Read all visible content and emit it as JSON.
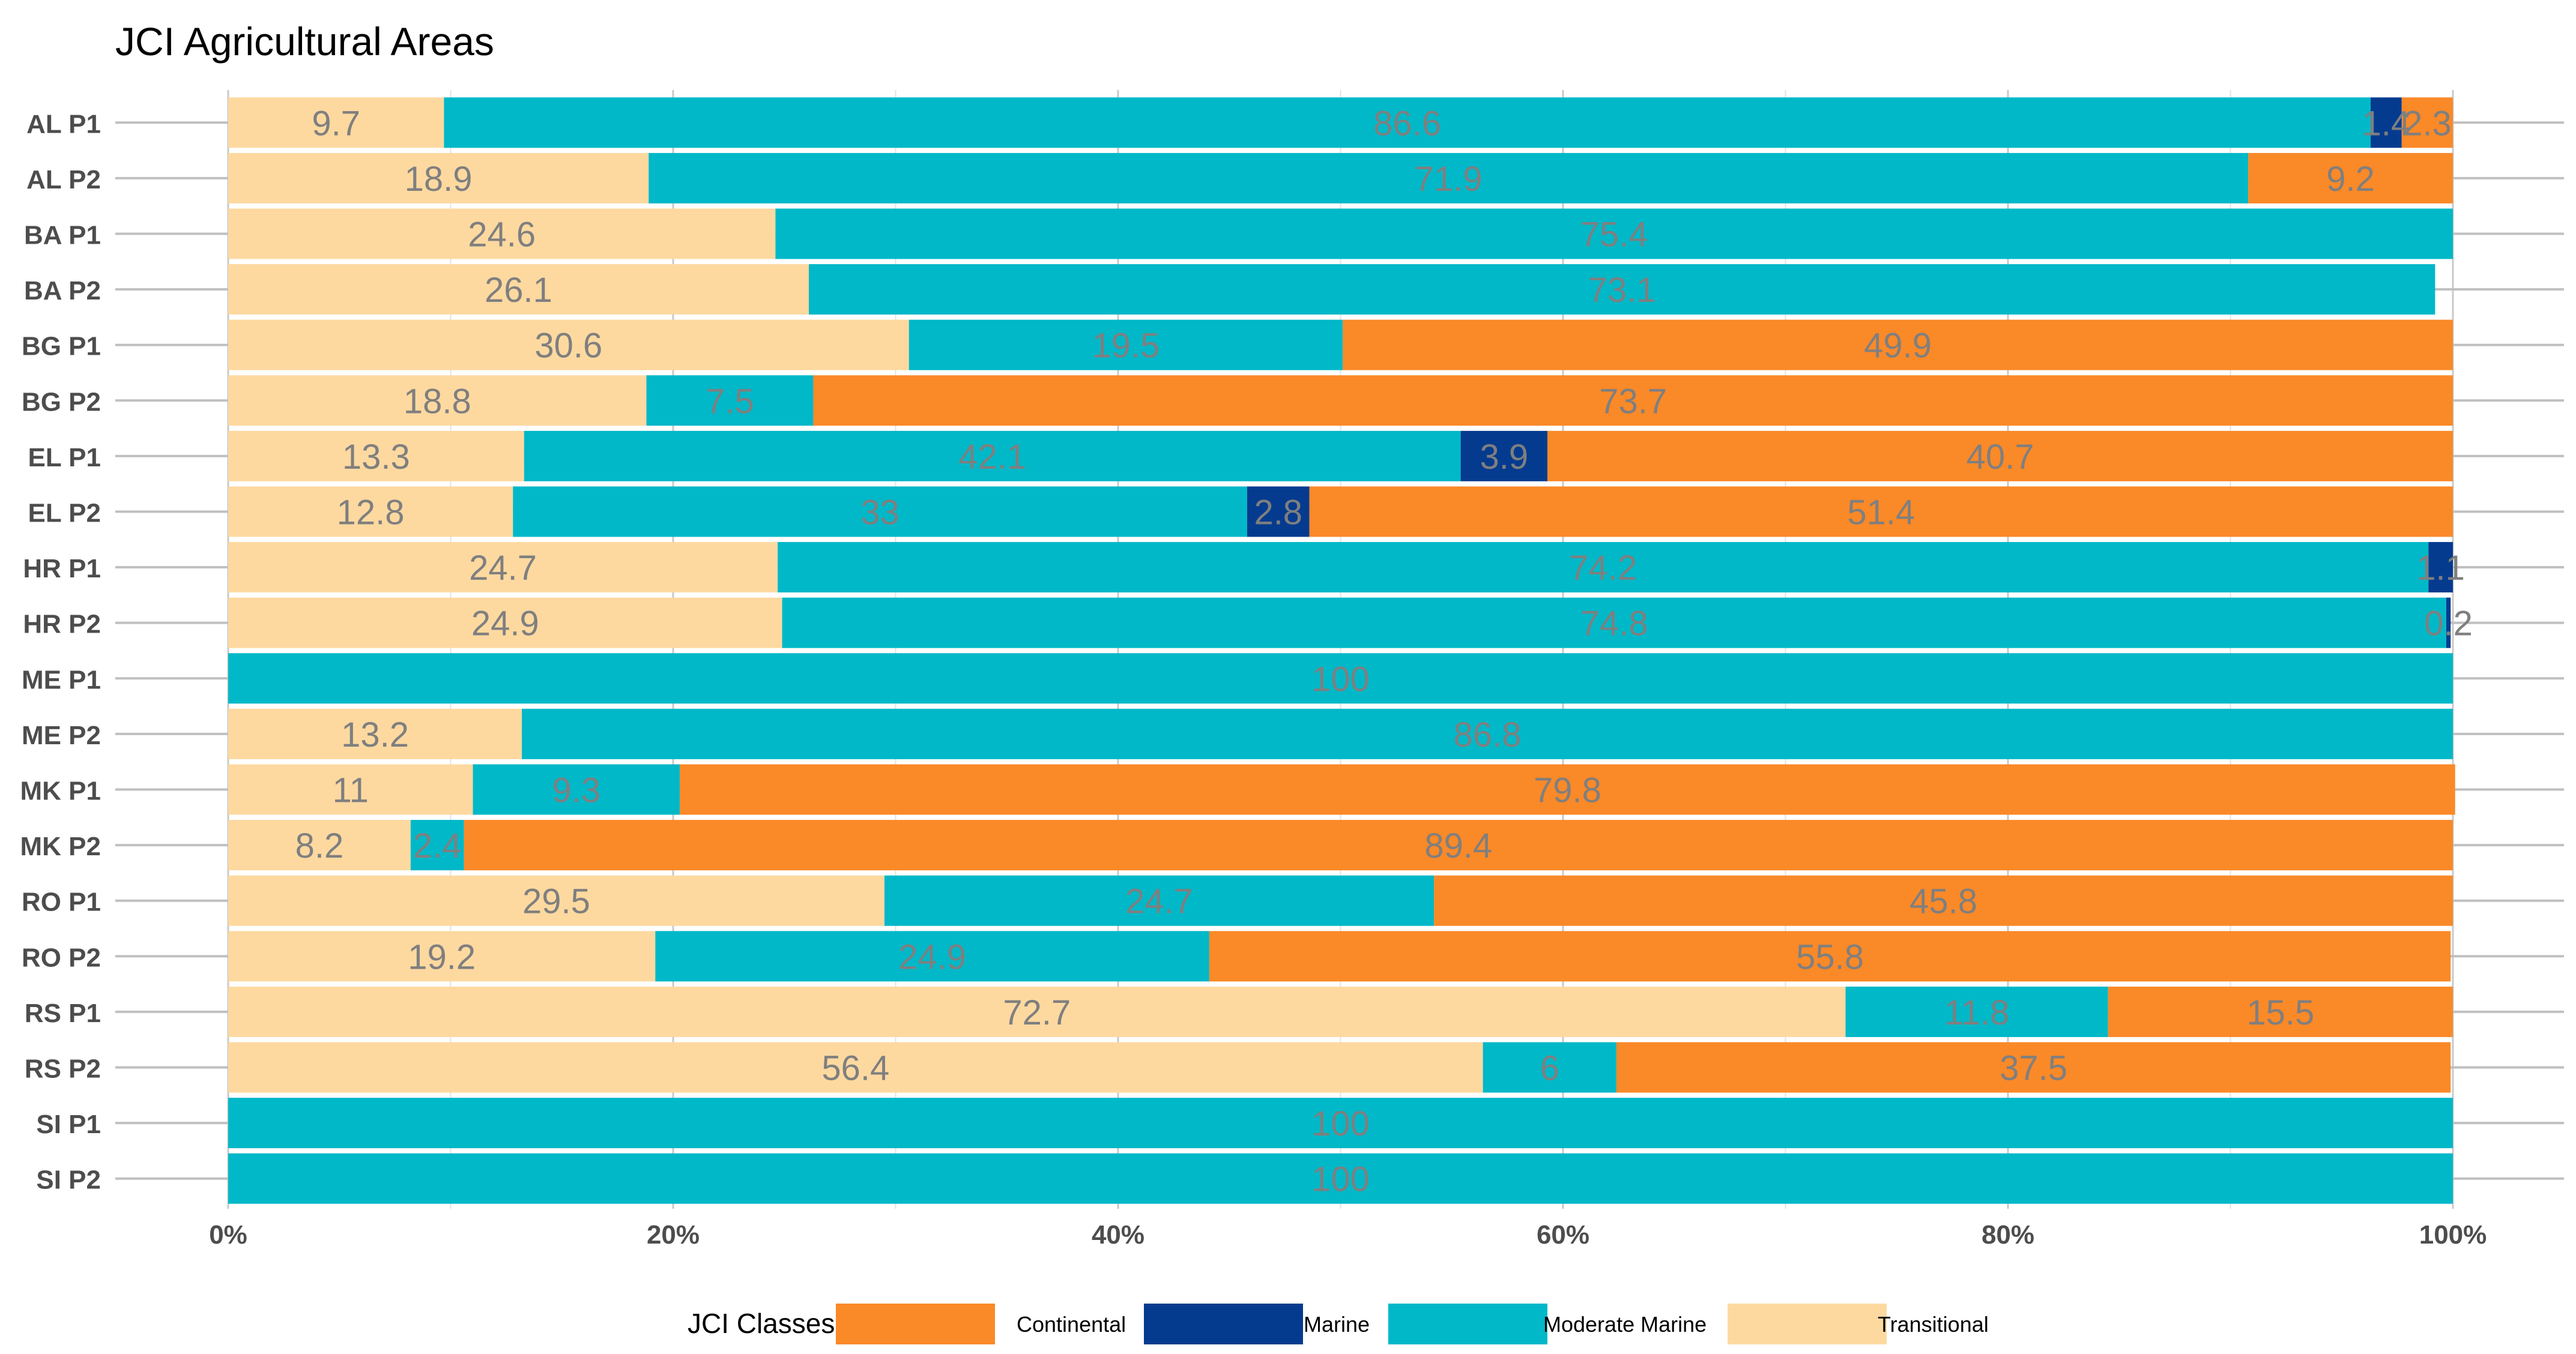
{
  "chart_data": {
    "type": "bar",
    "orientation": "horizontal",
    "stacked": true,
    "title": "JCI Agricultural Areas",
    "xlabel": "",
    "ylabel": "",
    "xlim": [
      0,
      100
    ],
    "x_ticks": [
      "0%",
      "20%",
      "40%",
      "60%",
      "80%",
      "100%"
    ],
    "grid": true,
    "legend_position": "bottom",
    "legend_title": "JCI Classes",
    "categories": [
      "AL P1",
      "AL P2",
      "BA P1",
      "BA P2",
      "BG P1",
      "BG P2",
      "EL P1",
      "EL P2",
      "HR P1",
      "HR P2",
      "ME P1",
      "ME P2",
      "MK P1",
      "MK P2",
      "RO P1",
      "RO P2",
      "RS P1",
      "RS P2",
      "SI P1",
      "SI P2"
    ],
    "stack_order": [
      "Transitional",
      "Moderate Marine",
      "Marine",
      "Continental"
    ],
    "legend_order": [
      "Continental",
      "Marine",
      "Moderate Marine",
      "Transitional"
    ],
    "series": [
      {
        "name": "Continental",
        "color": "#FA8928",
        "values": [
          2.3,
          9.2,
          0,
          0,
          49.9,
          73.7,
          40.7,
          51.4,
          0,
          0,
          0,
          0,
          79.8,
          89.4,
          45.8,
          55.8,
          15.5,
          37.5,
          0,
          0
        ]
      },
      {
        "name": "Marine",
        "color": "#053B8F",
        "values": [
          1.4,
          0,
          0,
          0,
          0,
          0,
          3.9,
          2.8,
          1.1,
          0.2,
          0,
          0,
          0,
          0,
          0,
          0,
          0,
          0,
          0,
          0
        ]
      },
      {
        "name": "Moderate Marine",
        "color": "#00B8C8",
        "values": [
          86.6,
          71.9,
          75.4,
          73.1,
          19.5,
          7.5,
          42.1,
          33,
          74.2,
          74.8,
          100,
          86.8,
          9.3,
          2.4,
          24.7,
          24.9,
          11.8,
          6,
          100,
          100
        ]
      },
      {
        "name": "Transitional",
        "color": "#FDD9A0",
        "values": [
          9.7,
          18.9,
          24.6,
          26.1,
          30.6,
          18.8,
          13.3,
          12.8,
          24.7,
          24.9,
          0,
          13.2,
          11,
          8.2,
          29.5,
          19.2,
          72.7,
          56.4,
          0,
          0
        ]
      }
    ]
  }
}
